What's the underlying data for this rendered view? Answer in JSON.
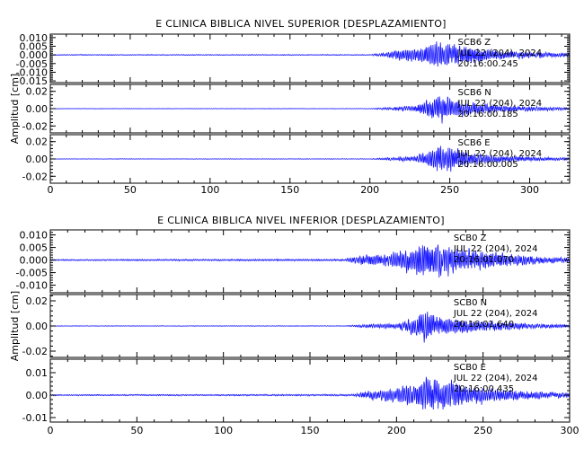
{
  "chart_data": [
    {
      "type": "line",
      "title": "E CLINICA BIBLICA NIVEL SUPERIOR [DESPLAZAMIENTO]",
      "ylabel": "Amplitud [cm]",
      "xlim": [
        0,
        325
      ],
      "xticks": [
        0,
        50,
        100,
        150,
        200,
        250,
        300
      ],
      "panels": [
        {
          "station_label": [
            "SCB6",
            "Z"
          ],
          "date_label": "JUL 22 (204), 2024",
          "time_label": "20:16:00.245",
          "ylim": [
            -0.016,
            0.012
          ],
          "yticks": [
            "0.010",
            "0.005",
            "0.000",
            "-0.005",
            "-0.010",
            "-0.015"
          ],
          "ytick_values": [
            0.01,
            0.005,
            0.0,
            -0.005,
            -0.01,
            -0.015
          ],
          "envelope": [
            [
              0,
              0.0004
            ],
            [
              200,
              0.0004
            ],
            [
              207,
              0.0015
            ],
            [
              215,
              0.004
            ],
            [
              232,
              0.007
            ],
            [
              238,
              0.011
            ],
            [
              244,
              0.012
            ],
            [
              252,
              0.01
            ],
            [
              262,
              0.007
            ],
            [
              280,
              0.004
            ],
            [
              300,
              0.0025
            ],
            [
              325,
              0.0015
            ]
          ],
          "seed": 11
        },
        {
          "station_label": [
            "SCB6",
            "N"
          ],
          "date_label": "JUL 22 (204), 2024",
          "time_label": "20:16:00.185",
          "ylim": [
            -0.028,
            0.028
          ],
          "yticks": [
            "0.02",
            "0.00",
            "-0.02"
          ],
          "ytick_values": [
            0.02,
            0.0,
            -0.02
          ],
          "envelope": [
            [
              0,
              0.0004
            ],
            [
              200,
              0.0005
            ],
            [
              210,
              0.002
            ],
            [
              228,
              0.005
            ],
            [
              238,
              0.017
            ],
            [
              244,
              0.026
            ],
            [
              252,
              0.018
            ],
            [
              262,
              0.011
            ],
            [
              280,
              0.006
            ],
            [
              300,
              0.004
            ],
            [
              325,
              0.002
            ]
          ],
          "seed": 23
        },
        {
          "station_label": [
            "SCB6",
            "E"
          ],
          "date_label": "JUL 22 (204), 2024",
          "time_label": "20:16:00.005",
          "ylim": [
            -0.028,
            0.028
          ],
          "yticks": [
            "0.02",
            "0.00",
            "-0.02"
          ],
          "ytick_values": [
            0.02,
            0.0,
            -0.02
          ],
          "envelope": [
            [
              0,
              0.0004
            ],
            [
              200,
              0.0005
            ],
            [
              210,
              0.002
            ],
            [
              228,
              0.005
            ],
            [
              238,
              0.016
            ],
            [
              244,
              0.027
            ],
            [
              252,
              0.018
            ],
            [
              262,
              0.011
            ],
            [
              280,
              0.006
            ],
            [
              300,
              0.004
            ],
            [
              325,
              0.002
            ]
          ],
          "seed": 37
        }
      ]
    },
    {
      "type": "line",
      "title": "E CLINICA BIBLICA NIVEL INFERIOR [DESPLAZAMIENTO]",
      "ylabel": "Amplitud [cm]",
      "xlim": [
        0,
        300
      ],
      "xticks": [
        0,
        50,
        100,
        150,
        200,
        250,
        300
      ],
      "panels": [
        {
          "station_label": [
            "SCB0",
            "Z"
          ],
          "date_label": "JUL 22 (204), 2024",
          "time_label": "20:16:01.070",
          "ylim": [
            -0.013,
            0.012
          ],
          "yticks": [
            "0.010",
            "0.005",
            "0.000",
            "-0.005",
            "-0.010"
          ],
          "ytick_values": [
            0.01,
            0.005,
            0.0,
            -0.005,
            -0.01
          ],
          "envelope": [
            [
              0,
              0.0004
            ],
            [
              170,
              0.0006
            ],
            [
              180,
              0.003
            ],
            [
              195,
              0.004
            ],
            [
              210,
              0.008
            ],
            [
              216,
              0.011
            ],
            [
              224,
              0.01
            ],
            [
              240,
              0.007
            ],
            [
              260,
              0.004
            ],
            [
              280,
              0.0025
            ],
            [
              300,
              0.0015
            ]
          ],
          "seed": 51
        },
        {
          "station_label": [
            "SCB0",
            "N"
          ],
          "date_label": "JUL 22 (204), 2024",
          "time_label": "20:16:01.640",
          "ylim": [
            -0.025,
            0.025
          ],
          "yticks": [
            "0.02",
            "0.00",
            "-0.02"
          ],
          "ytick_values": [
            0.02,
            0.0,
            -0.02
          ],
          "envelope": [
            [
              0,
              0.0003
            ],
            [
              170,
              0.0004
            ],
            [
              182,
              0.002
            ],
            [
              200,
              0.003
            ],
            [
              212,
              0.012
            ],
            [
              216,
              0.02
            ],
            [
              224,
              0.012
            ],
            [
              240,
              0.008
            ],
            [
              260,
              0.005
            ],
            [
              280,
              0.003
            ],
            [
              300,
              0.0015
            ]
          ],
          "seed": 67
        },
        {
          "station_label": [
            "SCB0",
            "E"
          ],
          "date_label": "JUL 22 (204), 2024",
          "time_label": "20:16:00.435",
          "ylim": [
            -0.012,
            0.016
          ],
          "yticks": [
            "0.01",
            "0.00",
            "-0.01"
          ],
          "ytick_values": [
            0.01,
            0.0,
            -0.01
          ],
          "envelope": [
            [
              0,
              0.0004
            ],
            [
              175,
              0.0006
            ],
            [
              185,
              0.003
            ],
            [
              200,
              0.005
            ],
            [
              212,
              0.009
            ],
            [
              218,
              0.012
            ],
            [
              226,
              0.01
            ],
            [
              240,
              0.007
            ],
            [
              260,
              0.004
            ],
            [
              280,
              0.0025
            ],
            [
              300,
              0.0015
            ]
          ],
          "seed": 83
        }
      ]
    }
  ]
}
